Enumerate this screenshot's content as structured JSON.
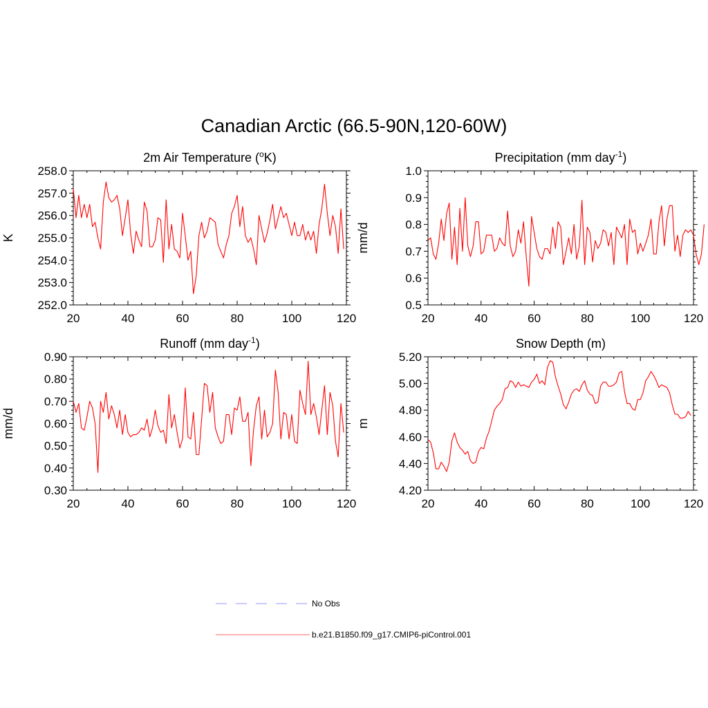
{
  "page": {
    "title": "Canadian Arctic (66.5-90N,120-60W)"
  },
  "colors": {
    "series": "#ff0000",
    "obs": "#aaaaff",
    "axis": "#000000"
  },
  "legend": {
    "obs_label": "No Obs",
    "model_label": "b.e21.B1850.f09_g17.CMIP6-piControl.001"
  },
  "chart_data": [
    {
      "type": "line",
      "title": "2m Air Temperature (oK)",
      "title_parts": {
        "main": "2m Air Temperature (",
        "sup": "o",
        "tail": "K)"
      },
      "xlabel": "",
      "ylabel": "K",
      "xlim": [
        20,
        120
      ],
      "ylim": [
        252.0,
        258.0
      ],
      "xticks": [
        "20",
        "40",
        "60",
        "80",
        "100",
        "120"
      ],
      "yticks": [
        "252.0",
        "253.0",
        "254.0",
        "255.0",
        "256.0",
        "257.0",
        "258.0"
      ],
      "series": [
        {
          "name": "b.e21.B1850.f09_g17.CMIP6-piControl.001",
          "x0": 20,
          "values": [
            257.2,
            255.9,
            256.9,
            255.9,
            256.5,
            255.9,
            256.5,
            255.5,
            255.7,
            255.0,
            254.5,
            256.6,
            257.5,
            256.8,
            256.6,
            256.7,
            256.9,
            256.3,
            255.1,
            255.9,
            256.7,
            255.2,
            254.3,
            255.3,
            254.9,
            254.6,
            256.6,
            256.2,
            254.6,
            254.6,
            254.9,
            255.9,
            255.8,
            253.9,
            256.7,
            254.5,
            255.6,
            254.5,
            254.4,
            254.1,
            256.1,
            255.1,
            254.0,
            254.4,
            252.5,
            253.3,
            255.1,
            255.7,
            255.0,
            255.3,
            255.9,
            255.8,
            255.7,
            254.7,
            254.4,
            254.1,
            254.7,
            255.1,
            256.1,
            256.4,
            256.9,
            255.5,
            256.4,
            255.1,
            254.8,
            255.0,
            254.5,
            253.8,
            256.0,
            255.4,
            254.8,
            255.2,
            255.8,
            256.5,
            255.4,
            255.9,
            256.4,
            255.9,
            256.1,
            255.6,
            255.1,
            255.7,
            255.1,
            255.1,
            255.6,
            254.9,
            255.3,
            254.9,
            255.3,
            254.3,
            255.6,
            256.3,
            257.4,
            256.1,
            255.1,
            256.0,
            255.5,
            254.3,
            256.3,
            254.5
          ]
        }
      ]
    },
    {
      "type": "line",
      "title": "Precipitation (mm day-1)",
      "title_parts": {
        "main": "Precipitation (mm day",
        "sup": "-1",
        "tail": ")"
      },
      "xlabel": "",
      "ylabel": "mm/d",
      "xlim": [
        20,
        120
      ],
      "ylim": [
        0.5,
        1.0
      ],
      "xticks": [
        "20",
        "40",
        "60",
        "80",
        "100",
        "120"
      ],
      "yticks": [
        "0.5",
        "0.6",
        "0.7",
        "0.8",
        "0.9",
        "1.0"
      ],
      "series": [
        {
          "name": "b.e21.B1850.f09_g17.CMIP6-piControl.001",
          "x0": 20,
          "values": [
            0.74,
            0.75,
            0.69,
            0.67,
            0.73,
            0.82,
            0.74,
            0.84,
            0.88,
            0.67,
            0.79,
            0.65,
            0.86,
            0.7,
            0.9,
            0.72,
            0.68,
            0.72,
            0.81,
            0.81,
            0.69,
            0.7,
            0.76,
            0.76,
            0.76,
            0.7,
            0.71,
            0.75,
            0.73,
            0.72,
            0.85,
            0.72,
            0.68,
            0.7,
            0.78,
            0.73,
            0.81,
            0.68,
            0.57,
            0.83,
            0.77,
            0.71,
            0.68,
            0.67,
            0.71,
            0.71,
            0.69,
            0.79,
            0.71,
            0.81,
            0.79,
            0.65,
            0.7,
            0.75,
            0.69,
            0.8,
            0.67,
            0.72,
            0.89,
            0.65,
            0.79,
            0.77,
            0.66,
            0.74,
            0.71,
            0.73,
            0.78,
            0.77,
            0.72,
            0.77,
            0.65,
            0.79,
            0.77,
            0.75,
            0.8,
            0.65,
            0.82,
            0.77,
            0.78,
            0.69,
            0.73,
            0.7,
            0.73,
            0.76,
            0.82,
            0.69,
            0.69,
            0.81,
            0.87,
            0.72,
            0.82,
            0.87,
            0.87,
            0.7,
            0.76,
            0.68,
            0.76,
            0.78,
            0.77,
            0.78,
            0.76,
            0.69,
            0.65,
            0.69,
            0.8
          ]
        }
      ]
    },
    {
      "type": "line",
      "title": "Runoff (mm day-1)",
      "title_parts": {
        "main": "Runoff (mm day",
        "sup": "-1",
        "tail": ")"
      },
      "xlabel": "",
      "ylabel": "mm/d",
      "xlim": [
        20,
        120
      ],
      "ylim": [
        0.3,
        0.9
      ],
      "xticks": [
        "20",
        "40",
        "60",
        "80",
        "100",
        "120"
      ],
      "yticks": [
        "0.30",
        "0.40",
        "0.50",
        "0.60",
        "0.70",
        "0.80",
        "0.90"
      ],
      "series": [
        {
          "name": "b.e21.B1850.f09_g17.CMIP6-piControl.001",
          "x0": 20,
          "values": [
            0.7,
            0.65,
            0.69,
            0.58,
            0.57,
            0.63,
            0.7,
            0.67,
            0.6,
            0.38,
            0.7,
            0.65,
            0.74,
            0.62,
            0.68,
            0.64,
            0.58,
            0.66,
            0.55,
            0.64,
            0.56,
            0.54,
            0.55,
            0.55,
            0.56,
            0.58,
            0.57,
            0.62,
            0.54,
            0.58,
            0.66,
            0.59,
            0.56,
            0.57,
            0.51,
            0.73,
            0.58,
            0.64,
            0.56,
            0.49,
            0.53,
            0.76,
            0.54,
            0.53,
            0.65,
            0.46,
            0.46,
            0.62,
            0.78,
            0.77,
            0.65,
            0.74,
            0.58,
            0.54,
            0.51,
            0.52,
            0.64,
            0.64,
            0.55,
            0.67,
            0.66,
            0.72,
            0.61,
            0.61,
            0.65,
            0.41,
            0.57,
            0.68,
            0.72,
            0.53,
            0.66,
            0.54,
            0.56,
            0.6,
            0.84,
            0.74,
            0.53,
            0.65,
            0.64,
            0.53,
            0.64,
            0.52,
            0.51,
            0.75,
            0.69,
            0.64,
            0.88,
            0.64,
            0.69,
            0.63,
            0.55,
            0.66,
            0.77,
            0.55,
            0.74,
            0.68,
            0.52,
            0.45,
            0.69,
            0.56
          ]
        }
      ]
    },
    {
      "type": "line",
      "title": "Snow Depth (m)",
      "title_parts": {
        "main": "Snow Depth (m)",
        "sup": "",
        "tail": ""
      },
      "xlabel": "",
      "ylabel": "m",
      "xlim": [
        20,
        120
      ],
      "ylim": [
        4.2,
        5.2
      ],
      "xticks": [
        "20",
        "40",
        "60",
        "80",
        "100",
        "120"
      ],
      "yticks": [
        "4.20",
        "4.40",
        "4.60",
        "4.80",
        "5.00",
        "5.20"
      ],
      "series": [
        {
          "name": "b.e21.B1850.f09_g17.CMIP6-piControl.001",
          "x0": 20,
          "values": [
            4.58,
            4.56,
            4.48,
            4.36,
            4.36,
            4.41,
            4.38,
            4.34,
            4.41,
            4.57,
            4.63,
            4.56,
            4.52,
            4.5,
            4.47,
            4.49,
            4.42,
            4.4,
            4.41,
            4.49,
            4.52,
            4.51,
            4.59,
            4.64,
            4.72,
            4.8,
            4.83,
            4.85,
            4.88,
            4.96,
            4.97,
            5.02,
            5.01,
            4.97,
            5.01,
            4.98,
            4.99,
            4.98,
            4.97,
            5.01,
            5.03,
            5.07,
            5.0,
            5.02,
            4.99,
            5.12,
            5.17,
            5.16,
            5.05,
            4.98,
            4.92,
            4.84,
            4.81,
            4.86,
            4.92,
            4.95,
            4.96,
            4.94,
            4.99,
            5.02,
            4.95,
            4.92,
            4.91,
            4.85,
            4.86,
            4.98,
            5.01,
            5.01,
            4.98,
            4.98,
            4.99,
            5.01,
            5.08,
            5.09,
            4.94,
            4.85,
            4.85,
            4.81,
            4.8,
            4.88,
            4.88,
            4.93,
            5.02,
            5.05,
            5.09,
            5.06,
            5.02,
            4.97,
            4.99,
            4.98,
            4.97,
            4.93,
            4.84,
            4.77,
            4.77,
            4.74,
            4.74,
            4.75,
            4.79,
            4.76
          ]
        }
      ]
    }
  ]
}
